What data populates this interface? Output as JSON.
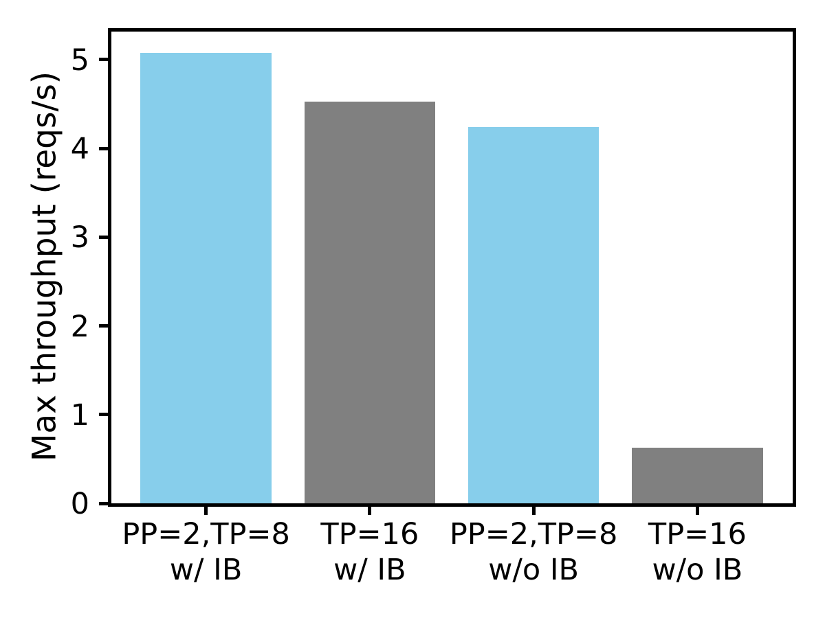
{
  "chart_data": {
    "type": "bar",
    "title": "",
    "xlabel": "",
    "ylabel": "Max throughput (reqs/s)",
    "categories": [
      "PP=2,TP=8\nw/ IB",
      "TP=16\nw/ IB",
      "PP=2,TP=8\nw/o IB",
      "TP=16\nw/o IB"
    ],
    "values": [
      5.08,
      4.53,
      4.24,
      0.63
    ],
    "bar_colors": [
      "#87ceeb",
      "#808080",
      "#87ceeb",
      "#808080"
    ],
    "yticks": [
      0,
      1,
      2,
      3,
      4,
      5
    ],
    "ylim": [
      0,
      5.34
    ],
    "xlim": [
      -0.59,
      3.59
    ],
    "bar_width": 0.8,
    "grid": false,
    "legend": null,
    "spine_color": "#000000",
    "background_color": "#ffffff"
  }
}
